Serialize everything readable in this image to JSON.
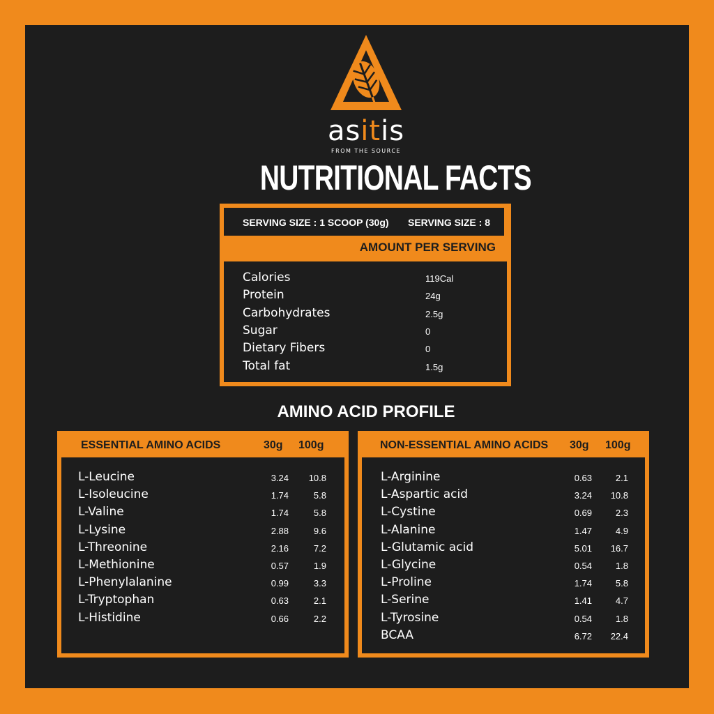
{
  "brand": {
    "name_parts": [
      "as",
      "it",
      "is"
    ],
    "tagline": "FROM THE SOURCE",
    "logo_icon": "leaf-triangle-icon"
  },
  "title": "NUTRITIONAL FACTS",
  "nutrition": {
    "serving_size": "SERVING SIZE : 1 SCOOP (30g)",
    "servings": "SERVING SIZE : 8",
    "amount_label": "AMOUNT PER SERVING",
    "rows": [
      {
        "name": "Calories",
        "value": "119Cal"
      },
      {
        "name": "Protein",
        "value": "24g"
      },
      {
        "name": "Carbohydrates",
        "value": "2.5g"
      },
      {
        "name": "Sugar",
        "value": "0"
      },
      {
        "name": "Dietary Fibers",
        "value": "0"
      },
      {
        "name": "Total fat",
        "value": "1.5g"
      }
    ]
  },
  "amino_title": "AMINO ACID PROFILE",
  "essential": {
    "header": "ESSENTIAL AMINO ACIDS",
    "col1": "30g",
    "col2": "100g",
    "rows": [
      {
        "name": "L-Leucine",
        "a": "3.24",
        "b": "10.8"
      },
      {
        "name": "L-Isoleucine",
        "a": "1.74",
        "b": "5.8"
      },
      {
        "name": "L-Valine",
        "a": "1.74",
        "b": "5.8"
      },
      {
        "name": "L-Lysine",
        "a": "2.88",
        "b": "9.6"
      },
      {
        "name": "L-Threonine",
        "a": "2.16",
        "b": "7.2"
      },
      {
        "name": "L-Methionine",
        "a": "0.57",
        "b": "1.9"
      },
      {
        "name": "L-Phenylalanine",
        "a": "0.99",
        "b": "3.3"
      },
      {
        "name": "L-Tryptophan",
        "a": "0.63",
        "b": "2.1"
      },
      {
        "name": "L-Histidine",
        "a": "0.66",
        "b": "2.2"
      }
    ]
  },
  "nonessential": {
    "header": "NON-ESSENTIAL AMINO ACIDS",
    "col1": "30g",
    "col2": "100g",
    "rows": [
      {
        "name": "L-Arginine",
        "a": "0.63",
        "b": "2.1"
      },
      {
        "name": "L-Aspartic acid",
        "a": "3.24",
        "b": "10.8"
      },
      {
        "name": "L-Cystine",
        "a": "0.69",
        "b": "2.3"
      },
      {
        "name": "L-Alanine",
        "a": "1.47",
        "b": "4.9"
      },
      {
        "name": "L-Glutamic acid",
        "a": "5.01",
        "b": "16.7"
      },
      {
        "name": "L-Glycine",
        "a": "0.54",
        "b": "1.8"
      },
      {
        "name": "L-Proline",
        "a": "1.74",
        "b": "5.8"
      },
      {
        "name": "L-Serine",
        "a": "1.41",
        "b": "4.7"
      },
      {
        "name": "L-Tyrosine",
        "a": "0.54",
        "b": "1.8"
      },
      {
        "name": "BCAA",
        "a": "6.72",
        "b": "22.4"
      }
    ]
  },
  "colors": {
    "accent": "#f08a1c",
    "panel": "#1d1d1d",
    "text": "#ffffff"
  }
}
